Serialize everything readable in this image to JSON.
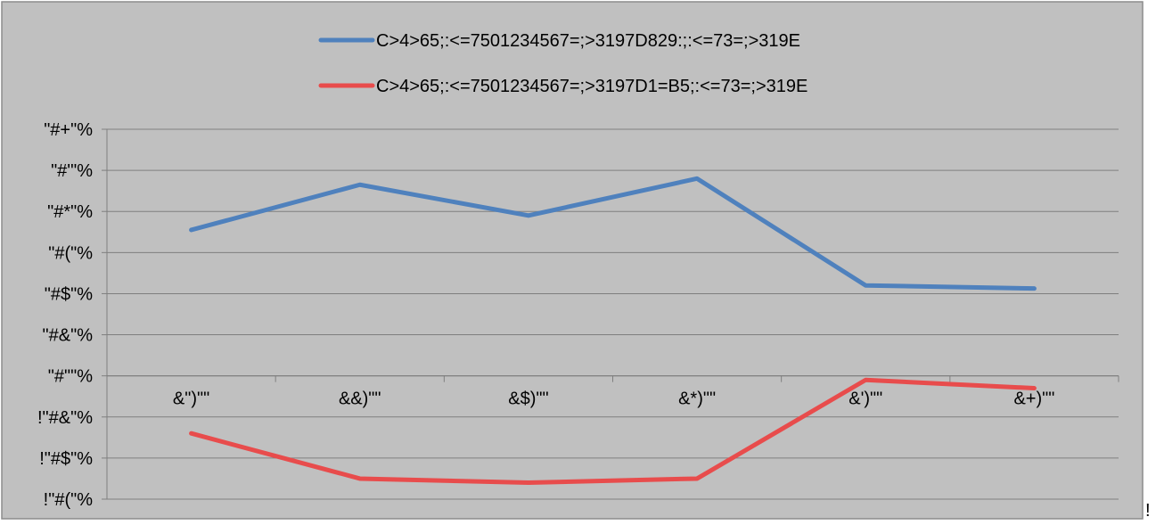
{
  "chart_data": {
    "type": "line",
    "title": "",
    "xlabel": "",
    "ylabel": "",
    "categories": [
      "&\")\"\"",
      "&&)\"\"",
      "&$)\"\"",
      "&*)\"\"",
      "&')\"\"",
      "&+)\"\""
    ],
    "y_tick_labels": [
      "!\"#(\"%",
      "!\"#$\"%",
      "!\"#&\"%",
      "\"#\"\"%",
      "\"#&\"%",
      "\"#$\"%",
      "\"#(\"%",
      "\"#*\"%",
      "\"#'\"%",
      "\"#+\"%"
    ],
    "ylim": [
      -0.6,
      1.2
    ],
    "ytick_step": 0.2,
    "x_axis_at": 0,
    "grid": true,
    "legend_position": "top",
    "background": "#c0c0c0",
    "series": [
      {
        "name": "C>4>65;:<=7501234567=;>3197D829:;:<=73=;>319E",
        "color": "#4f81bd",
        "values": [
          0.71,
          0.93,
          0.78,
          0.96,
          0.44,
          0.425
        ]
      },
      {
        "name": "C>4>65;:<=7501234567=;>3197D1=B5;:<=73=;>319E",
        "color": "#e84c4c",
        "values": [
          -0.28,
          -0.5,
          -0.52,
          -0.5,
          -0.02,
          -0.06
        ]
      }
    ]
  },
  "stray_mark": "!"
}
